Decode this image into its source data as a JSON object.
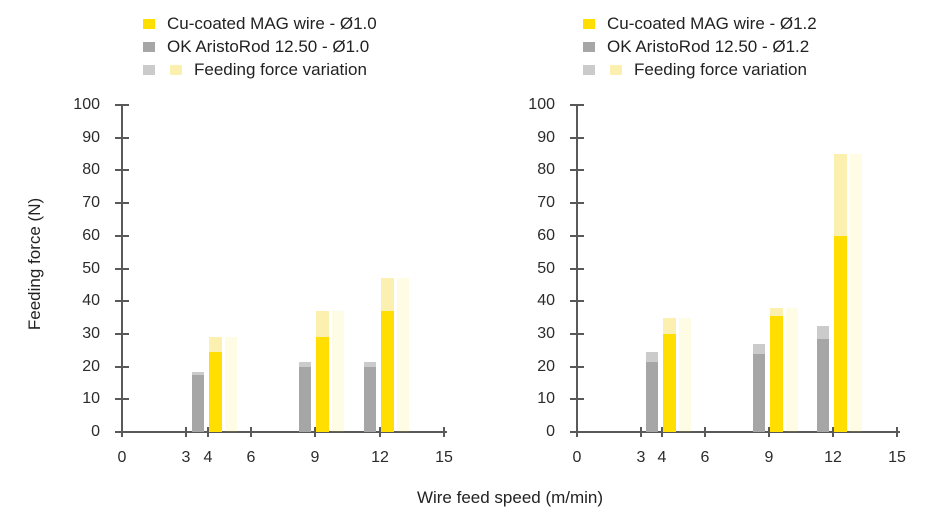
{
  "shared": {
    "xlabel": "Wire feed speed (m/min)",
    "ylabel": "Feeding force (N)"
  },
  "colors": {
    "yellow": "#FFDE00",
    "gray": "#A6A6A6",
    "lightgray": "#CBCBCB",
    "lightyellow": "#FBF0B0",
    "ghost": "rgba(255,222,0,0.10)",
    "axis": "#595959",
    "text": "#262626"
  },
  "chart_data": [
    {
      "type": "bar",
      "panel": "left",
      "title": "",
      "xlabel": "Wire feed speed (m/min)",
      "ylabel": "Feeding force (N)",
      "xlim": [
        0,
        15
      ],
      "ylim": [
        0,
        100
      ],
      "xticks": [
        0,
        3,
        4,
        6,
        9,
        12,
        15
      ],
      "yticks": [
        0,
        10,
        20,
        30,
        40,
        50,
        60,
        70,
        80,
        90,
        100
      ],
      "grid": false,
      "legend_position": "top",
      "legend": [
        {
          "swatches": [
            "yellow"
          ],
          "label": "Cu-coated MAG wire - Ø1.0"
        },
        {
          "swatches": [
            "gray"
          ],
          "label": "OK AristoRod 12.50 - Ø1.0"
        },
        {
          "swatches": [
            "lightgray",
            "lightyellow"
          ],
          "label": "Feeding force variation"
        }
      ],
      "series": [
        {
          "name": "OK AristoRod 12.50 - Ø1.0",
          "color_key": "gray",
          "x": [
            4,
            9,
            12
          ],
          "values": [
            17.5,
            20,
            20
          ],
          "variation_top": [
            18.5,
            21.5,
            21.5
          ]
        },
        {
          "name": "Cu-coated MAG wire - Ø1.0",
          "color_key": "yellow",
          "x": [
            4,
            9,
            12
          ],
          "values": [
            24.5,
            29,
            37
          ],
          "variation_top": [
            29,
            37,
            47
          ]
        }
      ]
    },
    {
      "type": "bar",
      "panel": "right",
      "title": "",
      "xlabel": "Wire feed speed (m/min)",
      "ylabel": "Feeding force (N)",
      "xlim": [
        0,
        15
      ],
      "ylim": [
        0,
        100
      ],
      "xticks": [
        0,
        3,
        4,
        6,
        9,
        12,
        15
      ],
      "yticks": [
        0,
        10,
        20,
        30,
        40,
        50,
        60,
        70,
        80,
        90,
        100
      ],
      "grid": false,
      "legend_position": "top",
      "legend": [
        {
          "swatches": [
            "yellow"
          ],
          "label": "Cu-coated MAG wire - Ø1.2"
        },
        {
          "swatches": [
            "gray"
          ],
          "label": "OK AristoRod 12.50 - Ø1.2"
        },
        {
          "swatches": [
            "lightgray",
            "lightyellow"
          ],
          "label": "Feeding force variation"
        }
      ],
      "series": [
        {
          "name": "OK AristoRod 12.50 - Ø1.2",
          "color_key": "gray",
          "x": [
            4,
            9,
            12
          ],
          "values": [
            21.5,
            24,
            28.5
          ],
          "variation_top": [
            24.5,
            27,
            32.5
          ]
        },
        {
          "name": "Cu-coated MAG wire - Ø1.2",
          "color_key": "yellow",
          "x": [
            4,
            9,
            12
          ],
          "values": [
            30,
            35.5,
            60
          ],
          "variation_top": [
            35,
            38,
            85
          ]
        }
      ]
    }
  ]
}
